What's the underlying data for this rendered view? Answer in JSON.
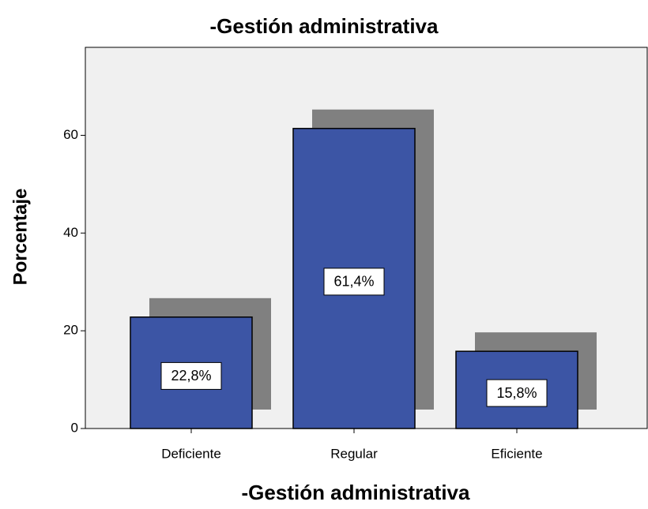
{
  "chart_data": {
    "type": "bar",
    "title": "-Gestión administrativa",
    "x_label": "-Gestión administrativa",
    "y_label": "Porcentaje",
    "categories": [
      "Deficiente",
      "Regular",
      "Eficiente"
    ],
    "values": [
      22.8,
      61.4,
      15.8
    ],
    "value_labels": [
      "22,8%",
      "61,4%",
      "15,8%"
    ],
    "color": "#3c55a5",
    "shadow_color": "#808080",
    "background": "#f0f0f0",
    "ylim": [
      0,
      78
    ],
    "yticks": [
      0,
      20,
      40,
      60
    ],
    "grid": false
  }
}
